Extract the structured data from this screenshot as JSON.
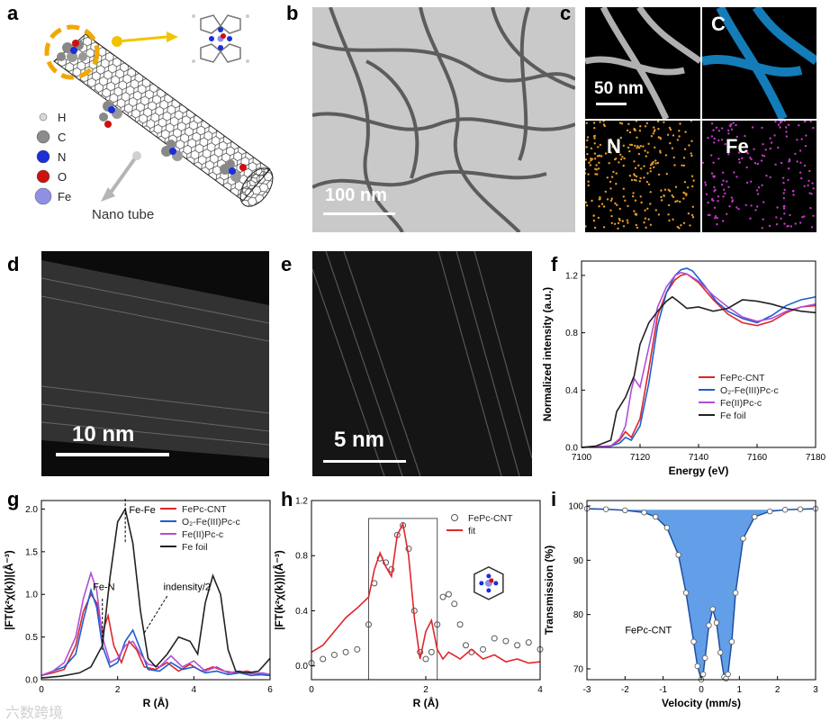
{
  "panels": {
    "a": {
      "label": "a",
      "legend": [
        {
          "symbol": "H",
          "color": "#d9d9d9"
        },
        {
          "symbol": "C",
          "color": "#8c8c8c"
        },
        {
          "symbol": "N",
          "color": "#1a2fd6"
        },
        {
          "symbol": "O",
          "color": "#cc1111"
        },
        {
          "symbol": "Fe",
          "color": "#8f8fe6"
        }
      ],
      "nanotube_label": "Nano tube"
    },
    "b": {
      "label": "b",
      "scale": "100 nm"
    },
    "c": {
      "label": "c",
      "scale": "50 nm",
      "maps": [
        "C",
        "N",
        "Fe"
      ],
      "map_colors": {
        "C": "#1a9be6",
        "N": "#e69a2a",
        "Fe": "#c436c9"
      }
    },
    "d": {
      "label": "d",
      "scale": "10 nm"
    },
    "e": {
      "label": "e",
      "scale": "5 nm"
    },
    "f": {
      "label": "f"
    },
    "g": {
      "label": "g"
    },
    "h": {
      "label": "h"
    },
    "i": {
      "label": "i"
    }
  },
  "colors": {
    "fepc_cnt": "#e0262b",
    "o2_fe3": "#1f5fd0",
    "fe2": "#b04fd8",
    "fe_foil": "#222222"
  },
  "watermark": "六数跨境",
  "chart_data": [
    {
      "id": "f",
      "type": "line",
      "xlabel": "Energy (eV)",
      "ylabel": "Normalized intensity (a.u.)",
      "xlim": [
        7100,
        7180
      ],
      "ylim": [
        0,
        1.3
      ],
      "xticks": [
        7100,
        7120,
        7140,
        7160,
        7180
      ],
      "yticks": [
        0.0,
        0.4,
        0.8,
        1.2
      ],
      "legend_position": "center-right",
      "series": [
        {
          "name": "FePc-CNT",
          "color": "#e0262b",
          "x": [
            7100,
            7110,
            7113,
            7115,
            7117,
            7120,
            7123,
            7126,
            7129,
            7132,
            7134,
            7136,
            7140,
            7145,
            7150,
            7155,
            7160,
            7165,
            7170,
            7175,
            7180
          ],
          "y": [
            0.0,
            0.01,
            0.05,
            0.11,
            0.07,
            0.2,
            0.55,
            0.92,
            1.08,
            1.17,
            1.2,
            1.21,
            1.15,
            1.03,
            0.93,
            0.87,
            0.85,
            0.88,
            0.94,
            0.98,
            0.99
          ]
        },
        {
          "name": "O₂-Fe(III)Pc-c",
          "color": "#1f5fd0",
          "x": [
            7100,
            7110,
            7113,
            7115,
            7117,
            7120,
            7123,
            7126,
            7129,
            7132,
            7134,
            7136,
            7138,
            7142,
            7146,
            7150,
            7155,
            7160,
            7165,
            7170,
            7175,
            7180
          ],
          "y": [
            0.0,
            0.01,
            0.03,
            0.07,
            0.05,
            0.15,
            0.45,
            0.85,
            1.08,
            1.2,
            1.24,
            1.25,
            1.23,
            1.13,
            1.02,
            0.95,
            0.9,
            0.87,
            0.92,
            0.99,
            1.03,
            1.05
          ]
        },
        {
          "name": "Fe(II)Pc-c",
          "color": "#b04fd8",
          "x": [
            7100,
            7110,
            7113,
            7115,
            7117,
            7118,
            7120,
            7123,
            7126,
            7129,
            7132,
            7134,
            7136,
            7140,
            7145,
            7150,
            7155,
            7160,
            7165,
            7170,
            7175,
            7180
          ],
          "y": [
            0.0,
            0.01,
            0.06,
            0.15,
            0.4,
            0.48,
            0.42,
            0.7,
            0.98,
            1.12,
            1.2,
            1.22,
            1.21,
            1.16,
            1.06,
            0.98,
            0.91,
            0.88,
            0.9,
            0.95,
            0.98,
            1.0
          ]
        },
        {
          "name": "Fe foil",
          "color": "#222222",
          "x": [
            7100,
            7105,
            7110,
            7112,
            7115,
            7118,
            7120,
            7123,
            7126,
            7129,
            7131,
            7133,
            7136,
            7140,
            7145,
            7150,
            7155,
            7160,
            7165,
            7170,
            7175,
            7180
          ],
          "y": [
            0.0,
            0.01,
            0.05,
            0.25,
            0.35,
            0.5,
            0.72,
            0.87,
            0.95,
            1.02,
            1.05,
            1.02,
            0.97,
            0.98,
            0.95,
            0.97,
            1.03,
            1.02,
            1.0,
            0.97,
            0.95,
            0.94
          ]
        }
      ]
    },
    {
      "id": "g",
      "type": "line",
      "xlabel": "R (Å)",
      "ylabel": "|FT(k²χ(k))|(Å⁻³)",
      "xlim": [
        0,
        6
      ],
      "ylim": [
        0,
        2.1
      ],
      "xticks": [
        0,
        2,
        4,
        6
      ],
      "yticks": [
        0.0,
        0.5,
        1.0,
        1.5,
        2.0
      ],
      "legend_position": "top-right",
      "annotations": [
        "Fe-Fe",
        "Fe-N",
        "indensity/2"
      ],
      "series": [
        {
          "name": "FePc-CNT",
          "color": "#e0262b",
          "x": [
            0,
            0.3,
            0.6,
            0.9,
            1.1,
            1.3,
            1.45,
            1.6,
            1.75,
            1.9,
            2.1,
            2.3,
            2.5,
            2.7,
            3.0,
            3.3,
            3.6,
            3.9,
            4.2,
            4.5,
            4.8,
            5.1,
            5.4,
            5.7,
            6.0
          ],
          "y": [
            0.05,
            0.08,
            0.12,
            0.4,
            0.8,
            1.0,
            0.9,
            0.55,
            0.75,
            0.4,
            0.2,
            0.45,
            0.35,
            0.15,
            0.12,
            0.2,
            0.1,
            0.18,
            0.1,
            0.15,
            0.1,
            0.08,
            0.1,
            0.06,
            0.05
          ]
        },
        {
          "name": "O₂-Fe(III)Pc-c",
          "color": "#1f5fd0",
          "x": [
            0,
            0.3,
            0.6,
            0.9,
            1.1,
            1.3,
            1.45,
            1.6,
            1.8,
            2.0,
            2.2,
            2.4,
            2.6,
            2.8,
            3.1,
            3.4,
            3.7,
            4.0,
            4.3,
            4.6,
            4.9,
            5.2,
            5.5,
            5.8,
            6.0
          ],
          "y": [
            0.05,
            0.1,
            0.15,
            0.3,
            0.7,
            1.05,
            0.85,
            0.4,
            0.15,
            0.2,
            0.45,
            0.58,
            0.35,
            0.12,
            0.1,
            0.2,
            0.12,
            0.15,
            0.08,
            0.1,
            0.06,
            0.08,
            0.05,
            0.06,
            0.05
          ]
        },
        {
          "name": "Fe(II)Pc-c",
          "color": "#b04fd8",
          "x": [
            0,
            0.3,
            0.6,
            0.9,
            1.1,
            1.3,
            1.45,
            1.6,
            1.8,
            2.0,
            2.2,
            2.4,
            2.6,
            2.8,
            3.1,
            3.4,
            3.7,
            4.0,
            4.3,
            4.6,
            4.9,
            5.2,
            5.5,
            5.8,
            6.0
          ],
          "y": [
            0.05,
            0.1,
            0.2,
            0.5,
            0.95,
            1.25,
            1.05,
            0.5,
            0.2,
            0.25,
            0.4,
            0.45,
            0.3,
            0.18,
            0.15,
            0.28,
            0.15,
            0.22,
            0.1,
            0.15,
            0.08,
            0.1,
            0.07,
            0.08,
            0.06
          ]
        },
        {
          "name": "Fe foil",
          "color": "#222222",
          "x": [
            0,
            0.5,
            1.0,
            1.3,
            1.6,
            1.8,
            2.0,
            2.2,
            2.4,
            2.6,
            2.8,
            3.0,
            3.3,
            3.6,
            3.9,
            4.1,
            4.3,
            4.5,
            4.7,
            4.9,
            5.1,
            5.4,
            5.7,
            6.0
          ],
          "y": [
            0.02,
            0.04,
            0.08,
            0.15,
            0.4,
            1.2,
            1.85,
            2.0,
            1.6,
            0.8,
            0.25,
            0.15,
            0.3,
            0.5,
            0.45,
            0.3,
            0.9,
            1.22,
            1.0,
            0.35,
            0.1,
            0.08,
            0.1,
            0.25
          ]
        }
      ]
    },
    {
      "id": "h",
      "type": "line",
      "xlabel": "R (Å)",
      "ylabel": "|FT(k²χ(k))|(Å⁻³)",
      "xlim": [
        0,
        4
      ],
      "ylim": [
        -0.1,
        1.2
      ],
      "xticks": [
        0,
        2,
        4
      ],
      "yticks": [
        0.0,
        0.4,
        0.8,
        1.2
      ],
      "legend_position": "top-right",
      "fit_window": [
        1.0,
        2.2
      ],
      "series": [
        {
          "name": "FePc-CNT",
          "color": "#555555",
          "style": "open-circle",
          "x": [
            0,
            0.2,
            0.4,
            0.6,
            0.8,
            1.0,
            1.1,
            1.2,
            1.3,
            1.4,
            1.5,
            1.6,
            1.7,
            1.8,
            1.9,
            2.0,
            2.1,
            2.2,
            2.3,
            2.4,
            2.5,
            2.6,
            2.7,
            2.8,
            3.0,
            3.2,
            3.4,
            3.6,
            3.8,
            4.0
          ],
          "y": [
            0.02,
            0.05,
            0.08,
            0.1,
            0.12,
            0.3,
            0.6,
            0.78,
            0.75,
            0.7,
            0.95,
            1.02,
            0.85,
            0.4,
            0.1,
            0.05,
            0.1,
            0.3,
            0.5,
            0.52,
            0.45,
            0.3,
            0.15,
            0.1,
            0.12,
            0.2,
            0.18,
            0.15,
            0.17,
            0.12
          ]
        },
        {
          "name": "fit",
          "color": "#e0262b",
          "x": [
            0,
            0.2,
            0.4,
            0.6,
            0.8,
            1.0,
            1.1,
            1.2,
            1.3,
            1.4,
            1.5,
            1.6,
            1.7,
            1.8,
            1.9,
            2.0,
            2.1,
            2.2,
            2.3,
            2.4,
            2.6,
            2.8,
            3.0,
            3.2,
            3.4,
            3.6,
            3.8,
            4.0
          ],
          "y": [
            0.1,
            0.15,
            0.25,
            0.35,
            0.42,
            0.5,
            0.7,
            0.82,
            0.72,
            0.65,
            0.95,
            1.03,
            0.8,
            0.35,
            0.05,
            0.25,
            0.33,
            0.12,
            0.05,
            0.1,
            0.05,
            0.12,
            0.05,
            0.08,
            0.03,
            0.05,
            0.02,
            0.03
          ]
        }
      ]
    },
    {
      "id": "i",
      "type": "line",
      "xlabel": "Velocity (mm/s)",
      "ylabel": "Transmission (%)",
      "xlim": [
        -3,
        3
      ],
      "ylim": [
        68,
        101
      ],
      "xticks": [
        -3,
        -2,
        -1,
        0,
        1,
        2,
        3
      ],
      "yticks": [
        70,
        80,
        90,
        100
      ],
      "annotation": "FePc-CNT",
      "series": [
        {
          "name": "FePc-CNT fit",
          "color": "#2f7fe0",
          "fill": true,
          "x": [
            -3,
            -2.5,
            -2,
            -1.5,
            -1.2,
            -0.9,
            -0.6,
            -0.4,
            -0.2,
            -0.1,
            0.0,
            0.05,
            0.1,
            0.2,
            0.3,
            0.4,
            0.5,
            0.6,
            0.65,
            0.7,
            0.8,
            0.9,
            1.1,
            1.4,
            1.8,
            2.2,
            2.6,
            3.0
          ],
          "y": [
            99.5,
            99.4,
            99.2,
            98.8,
            98.0,
            96.0,
            91.0,
            84.0,
            75.0,
            70.5,
            68.0,
            69.0,
            72.0,
            78.0,
            81.0,
            78.5,
            73.0,
            68.5,
            68.2,
            69.0,
            75.0,
            84.0,
            94.0,
            98.0,
            99.0,
            99.3,
            99.4,
            99.5
          ]
        }
      ]
    }
  ]
}
